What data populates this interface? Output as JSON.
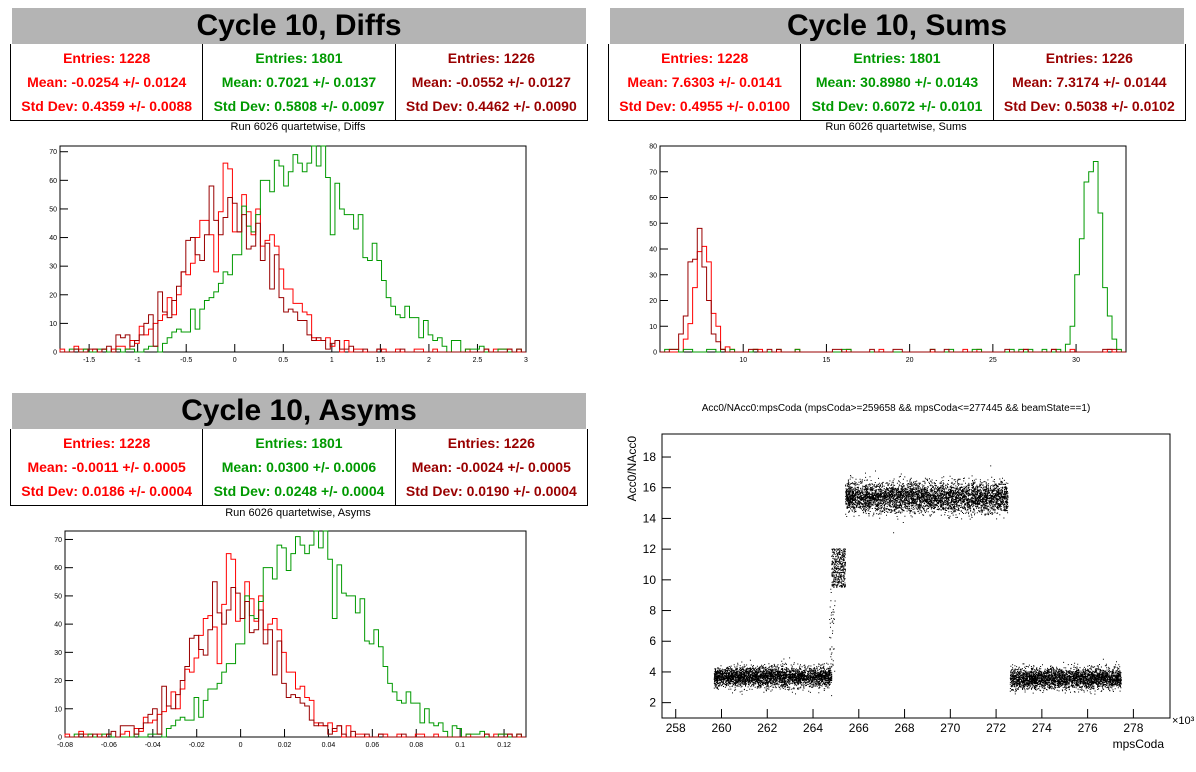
{
  "panels": {
    "diffs": {
      "title": "Cycle 10, Diffs",
      "subtitle": "Run 6026 quartetwise, Diffs",
      "stats": [
        {
          "entries": "Entries: 1228",
          "mean": "Mean: -0.0254 +/- 0.0124",
          "std": "Std Dev: 0.4359 +/- 0.0088",
          "color": "#ff0000"
        },
        {
          "entries": "Entries: 1801",
          "mean": "Mean: 0.7021 +/- 0.0137",
          "std": "Std Dev: 0.5808 +/- 0.0097",
          "color": "#009900"
        },
        {
          "entries": "Entries: 1226",
          "mean": "Mean: -0.0552 +/- 0.0127",
          "std": "Std Dev: 0.4462 +/- 0.0090",
          "color": "#990000"
        }
      ]
    },
    "sums": {
      "title": "Cycle 10, Sums",
      "subtitle": "Run 6026 quartetwise, Sums",
      "stats": [
        {
          "entries": "Entries: 1228",
          "mean": "Mean: 7.6303 +/- 0.0141",
          "std": "Std Dev: 0.4955 +/- 0.0100",
          "color": "#ff0000"
        },
        {
          "entries": "Entries: 1801",
          "mean": "Mean: 30.8980 +/- 0.0143",
          "std": "Std Dev: 0.6072 +/- 0.0101",
          "color": "#009900"
        },
        {
          "entries": "Entries: 1226",
          "mean": "Mean: 7.3174 +/- 0.0144",
          "std": "Std Dev: 0.5038 +/- 0.0102",
          "color": "#990000"
        }
      ]
    },
    "asyms": {
      "title": "Cycle 10, Asyms",
      "subtitle": "Run 6026 quartetwise, Asyms",
      "stats": [
        {
          "entries": "Entries: 1228",
          "mean": "Mean: -0.0011 +/- 0.0005",
          "std": "Std Dev: 0.0186 +/- 0.0004",
          "color": "#ff0000"
        },
        {
          "entries": "Entries: 1801",
          "mean": "Mean: 0.0300 +/- 0.0006",
          "std": "Std Dev: 0.0248 +/- 0.0004",
          "color": "#009900"
        },
        {
          "entries": "Entries: 1226",
          "mean": "Mean: -0.0024 +/- 0.0005",
          "std": "Std Dev: 0.0190 +/- 0.0004",
          "color": "#990000"
        }
      ]
    },
    "scatter": {
      "subtitle": "Acc0/NAcc0:mpsCoda (mpsCoda>=259658 && mpsCoda<=277445 && beamState==1)"
    }
  },
  "chart_data": [
    {
      "type": "bar",
      "name": "diffs",
      "xlim": [
        -1.8,
        3.0
      ],
      "ylim": [
        0,
        72
      ],
      "xticks": [
        -1.5,
        -1,
        -0.5,
        0,
        0.5,
        1,
        1.5,
        2,
        2.5,
        3
      ],
      "xtick_labels": [
        "-1.5",
        "-1",
        "-0.5",
        "0",
        "0.5",
        "1",
        "1.5",
        "2",
        "2.5",
        "3"
      ],
      "yticks": [
        0,
        10,
        20,
        30,
        40,
        50,
        60,
        70
      ],
      "ytick_labels": [
        "0",
        "10",
        "20",
        "30",
        "40",
        "50",
        "60",
        "70"
      ],
      "series": [
        {
          "color": "#ff0000",
          "mean": -0.0254,
          "std": 0.4359,
          "peak": 50
        },
        {
          "color": "#009900",
          "mean": 0.7021,
          "std": 0.5808,
          "peak": 69
        },
        {
          "color": "#990000",
          "mean": -0.0552,
          "std": 0.4462,
          "peak": 48
        }
      ]
    },
    {
      "type": "bar",
      "name": "sums",
      "xlim": [
        5.0,
        33.0
      ],
      "ylim": [
        0,
        80
      ],
      "xticks": [
        10,
        15,
        20,
        25,
        30
      ],
      "xtick_labels": [
        "10",
        "15",
        "20",
        "25",
        "30"
      ],
      "yticks": [
        0,
        10,
        20,
        30,
        40,
        50,
        60,
        70,
        80
      ],
      "ytick_labels": [
        "0",
        "10",
        "20",
        "30",
        "40",
        "50",
        "60",
        "70",
        "80"
      ],
      "series": [
        {
          "color": "#ff0000",
          "mean": 7.6303,
          "std": 0.4955,
          "peak": 46
        },
        {
          "color": "#009900",
          "mean": 30.898,
          "std": 0.6072,
          "peak": 77
        },
        {
          "color": "#990000",
          "mean": 7.3174,
          "std": 0.5038,
          "peak": 47
        }
      ]
    },
    {
      "type": "bar",
      "name": "asyms",
      "xlim": [
        -0.08,
        0.13
      ],
      "ylim": [
        0,
        73
      ],
      "xticks": [
        -0.08,
        -0.06,
        -0.04,
        -0.02,
        0,
        0.02,
        0.04,
        0.06,
        0.08,
        0.1,
        0.12
      ],
      "xtick_labels": [
        "-0.08",
        "-0.06",
        "-0.04",
        "-0.02",
        "0",
        "0.02",
        "0.04",
        "0.06",
        "0.08",
        "0.1",
        "0.12"
      ],
      "yticks": [
        0,
        10,
        20,
        30,
        40,
        50,
        60,
        70
      ],
      "ytick_labels": [
        "0",
        "10",
        "20",
        "30",
        "40",
        "50",
        "60",
        "70"
      ],
      "series": [
        {
          "color": "#ff0000",
          "mean": -0.0011,
          "std": 0.0186,
          "peak": 49
        },
        {
          "color": "#009900",
          "mean": 0.03,
          "std": 0.0248,
          "peak": 71
        },
        {
          "color": "#990000",
          "mean": -0.0024,
          "std": 0.019,
          "peak": 47
        }
      ]
    },
    {
      "type": "scatter",
      "name": "scatter",
      "xlabel": "mpsCoda",
      "ylabel": "Acc0/NAcc0",
      "x_exponent": "×10³",
      "xlim": [
        257.4,
        279.6
      ],
      "ylim": [
        1,
        19.5
      ],
      "xticks": [
        258,
        260,
        262,
        264,
        266,
        268,
        270,
        272,
        274,
        276,
        278
      ],
      "xtick_labels": [
        "258",
        "260",
        "262",
        "264",
        "266",
        "268",
        "270",
        "272",
        "274",
        "276",
        "278"
      ],
      "yticks": [
        2,
        4,
        6,
        8,
        10,
        12,
        14,
        16,
        18
      ],
      "ytick_labels": [
        "2",
        "4",
        "6",
        "8",
        "10",
        "12",
        "14",
        "16",
        "18"
      ],
      "clusters": [
        {
          "x": [
            259.66,
            264.8
          ],
          "y_center": 3.7,
          "y_spread": 0.55
        },
        {
          "x": [
            264.8,
            265.4
          ],
          "y_center": 10.8,
          "y_spread": 0.9
        },
        {
          "x": [
            265.4,
            272.5
          ],
          "y_center": 15.4,
          "y_spread": 0.8
        },
        {
          "x": [
            272.6,
            277.45
          ],
          "y_center": 3.6,
          "y_spread": 0.55
        }
      ]
    }
  ]
}
